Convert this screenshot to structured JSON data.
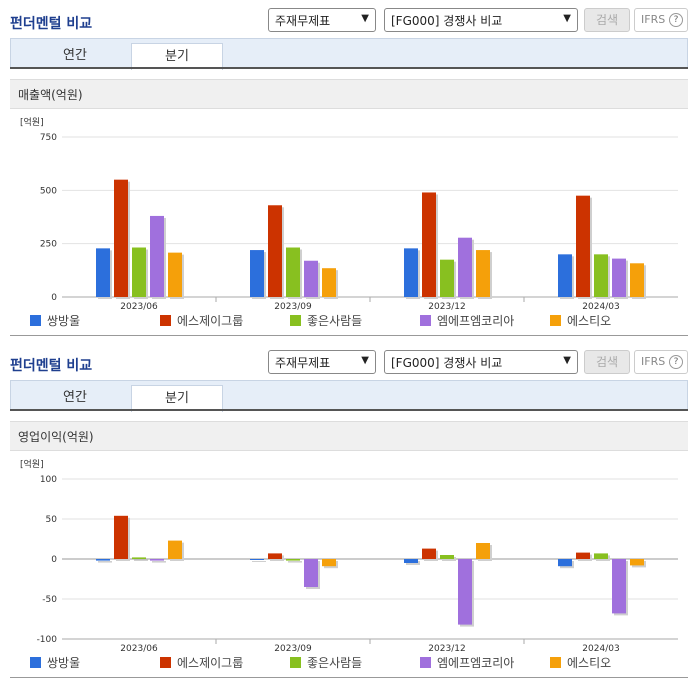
{
  "panels": [
    {
      "title": "펀더멘털 비교",
      "select1": "주재무제표",
      "select2": "[FG000] 경쟁사 비교",
      "search_label": "검색",
      "ifrs_label": "IFRS",
      "tabs": [
        {
          "label": "연간",
          "active": false
        },
        {
          "label": "분기",
          "active": true
        }
      ],
      "section_title": "매출액(억원)",
      "chart_data": {
        "type": "bar",
        "unit": "[억원]",
        "categories": [
          "2023/06",
          "2023/09",
          "2023/12",
          "2024/03"
        ],
        "ylim": [
          0,
          750
        ],
        "yticks": [
          0,
          250,
          500,
          750
        ],
        "series": [
          {
            "name": "쌍방울",
            "color": "#2c6fdc",
            "values": [
              228,
              220,
              228,
              200
            ]
          },
          {
            "name": "에스제이그룹",
            "color": "#cc3300",
            "values": [
              550,
              430,
              490,
              475
            ]
          },
          {
            "name": "좋은사람들",
            "color": "#88c020",
            "values": [
              232,
              232,
              175,
              200
            ]
          },
          {
            "name": "엠에프엠코리아",
            "color": "#a070dd",
            "values": [
              380,
              170,
              278,
              180
            ]
          },
          {
            "name": "에스티오",
            "color": "#f5a00a",
            "values": [
              208,
              135,
              220,
              158
            ]
          }
        ]
      }
    },
    {
      "title": "펀더멘털 비교",
      "select1": "주재무제표",
      "select2": "[FG000] 경쟁사 비교",
      "search_label": "검색",
      "ifrs_label": "IFRS",
      "tabs": [
        {
          "label": "연간",
          "active": false
        },
        {
          "label": "분기",
          "active": true
        }
      ],
      "section_title": "영업이익(억원)",
      "chart_data": {
        "type": "bar",
        "unit": "[억원]",
        "categories": [
          "2023/06",
          "2023/09",
          "2023/12",
          "2024/03"
        ],
        "ylim": [
          -100,
          100
        ],
        "yticks": [
          -100,
          -50,
          0,
          50,
          100
        ],
        "series": [
          {
            "name": "쌍방울",
            "color": "#2c6fdc",
            "values": [
              -2,
              0,
              -5,
              -9
            ]
          },
          {
            "name": "에스제이그룹",
            "color": "#cc3300",
            "values": [
              54,
              7,
              13,
              8
            ]
          },
          {
            "name": "좋은사람들",
            "color": "#88c020",
            "values": [
              2,
              -2,
              5,
              7
            ]
          },
          {
            "name": "엠에프엠코리아",
            "color": "#a070dd",
            "values": [
              -2,
              -35,
              -82,
              -68
            ]
          },
          {
            "name": "에스티오",
            "color": "#f5a00a",
            "values": [
              23,
              -9,
              20,
              -8
            ]
          }
        ]
      }
    }
  ]
}
